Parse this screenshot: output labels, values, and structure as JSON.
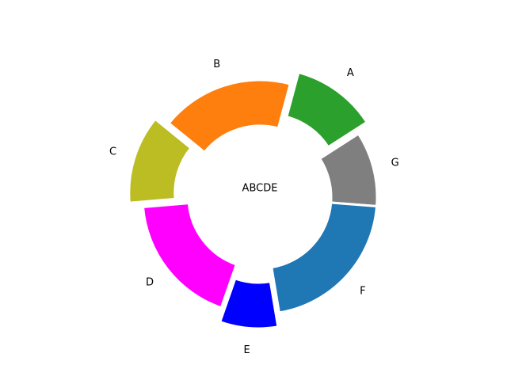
{
  "chart_data": {
    "type": "pie",
    "variant": "donut",
    "center_text": "ABCDE",
    "start_angle_deg": 75,
    "direction": "clockwise",
    "slices": [
      {
        "label": "A",
        "value": 12.5,
        "color": "#2ca02c",
        "exploded": true
      },
      {
        "label": "G",
        "value": 11.0,
        "color": "#7f7f7f",
        "exploded": false
      },
      {
        "label": "F",
        "value": 22.5,
        "color": "#1f77b4",
        "exploded": false
      },
      {
        "label": "E",
        "value": 8.5,
        "color": "#0000ff",
        "exploded": true
      },
      {
        "label": "D",
        "value": 19.5,
        "color": "#ff00ff",
        "exploded": false
      },
      {
        "label": "C",
        "value": 13.0,
        "color": "#bcbd22",
        "exploded": true
      },
      {
        "label": "B",
        "value": 19.5,
        "color": "#ff7f0e",
        "exploded": false
      }
    ]
  }
}
